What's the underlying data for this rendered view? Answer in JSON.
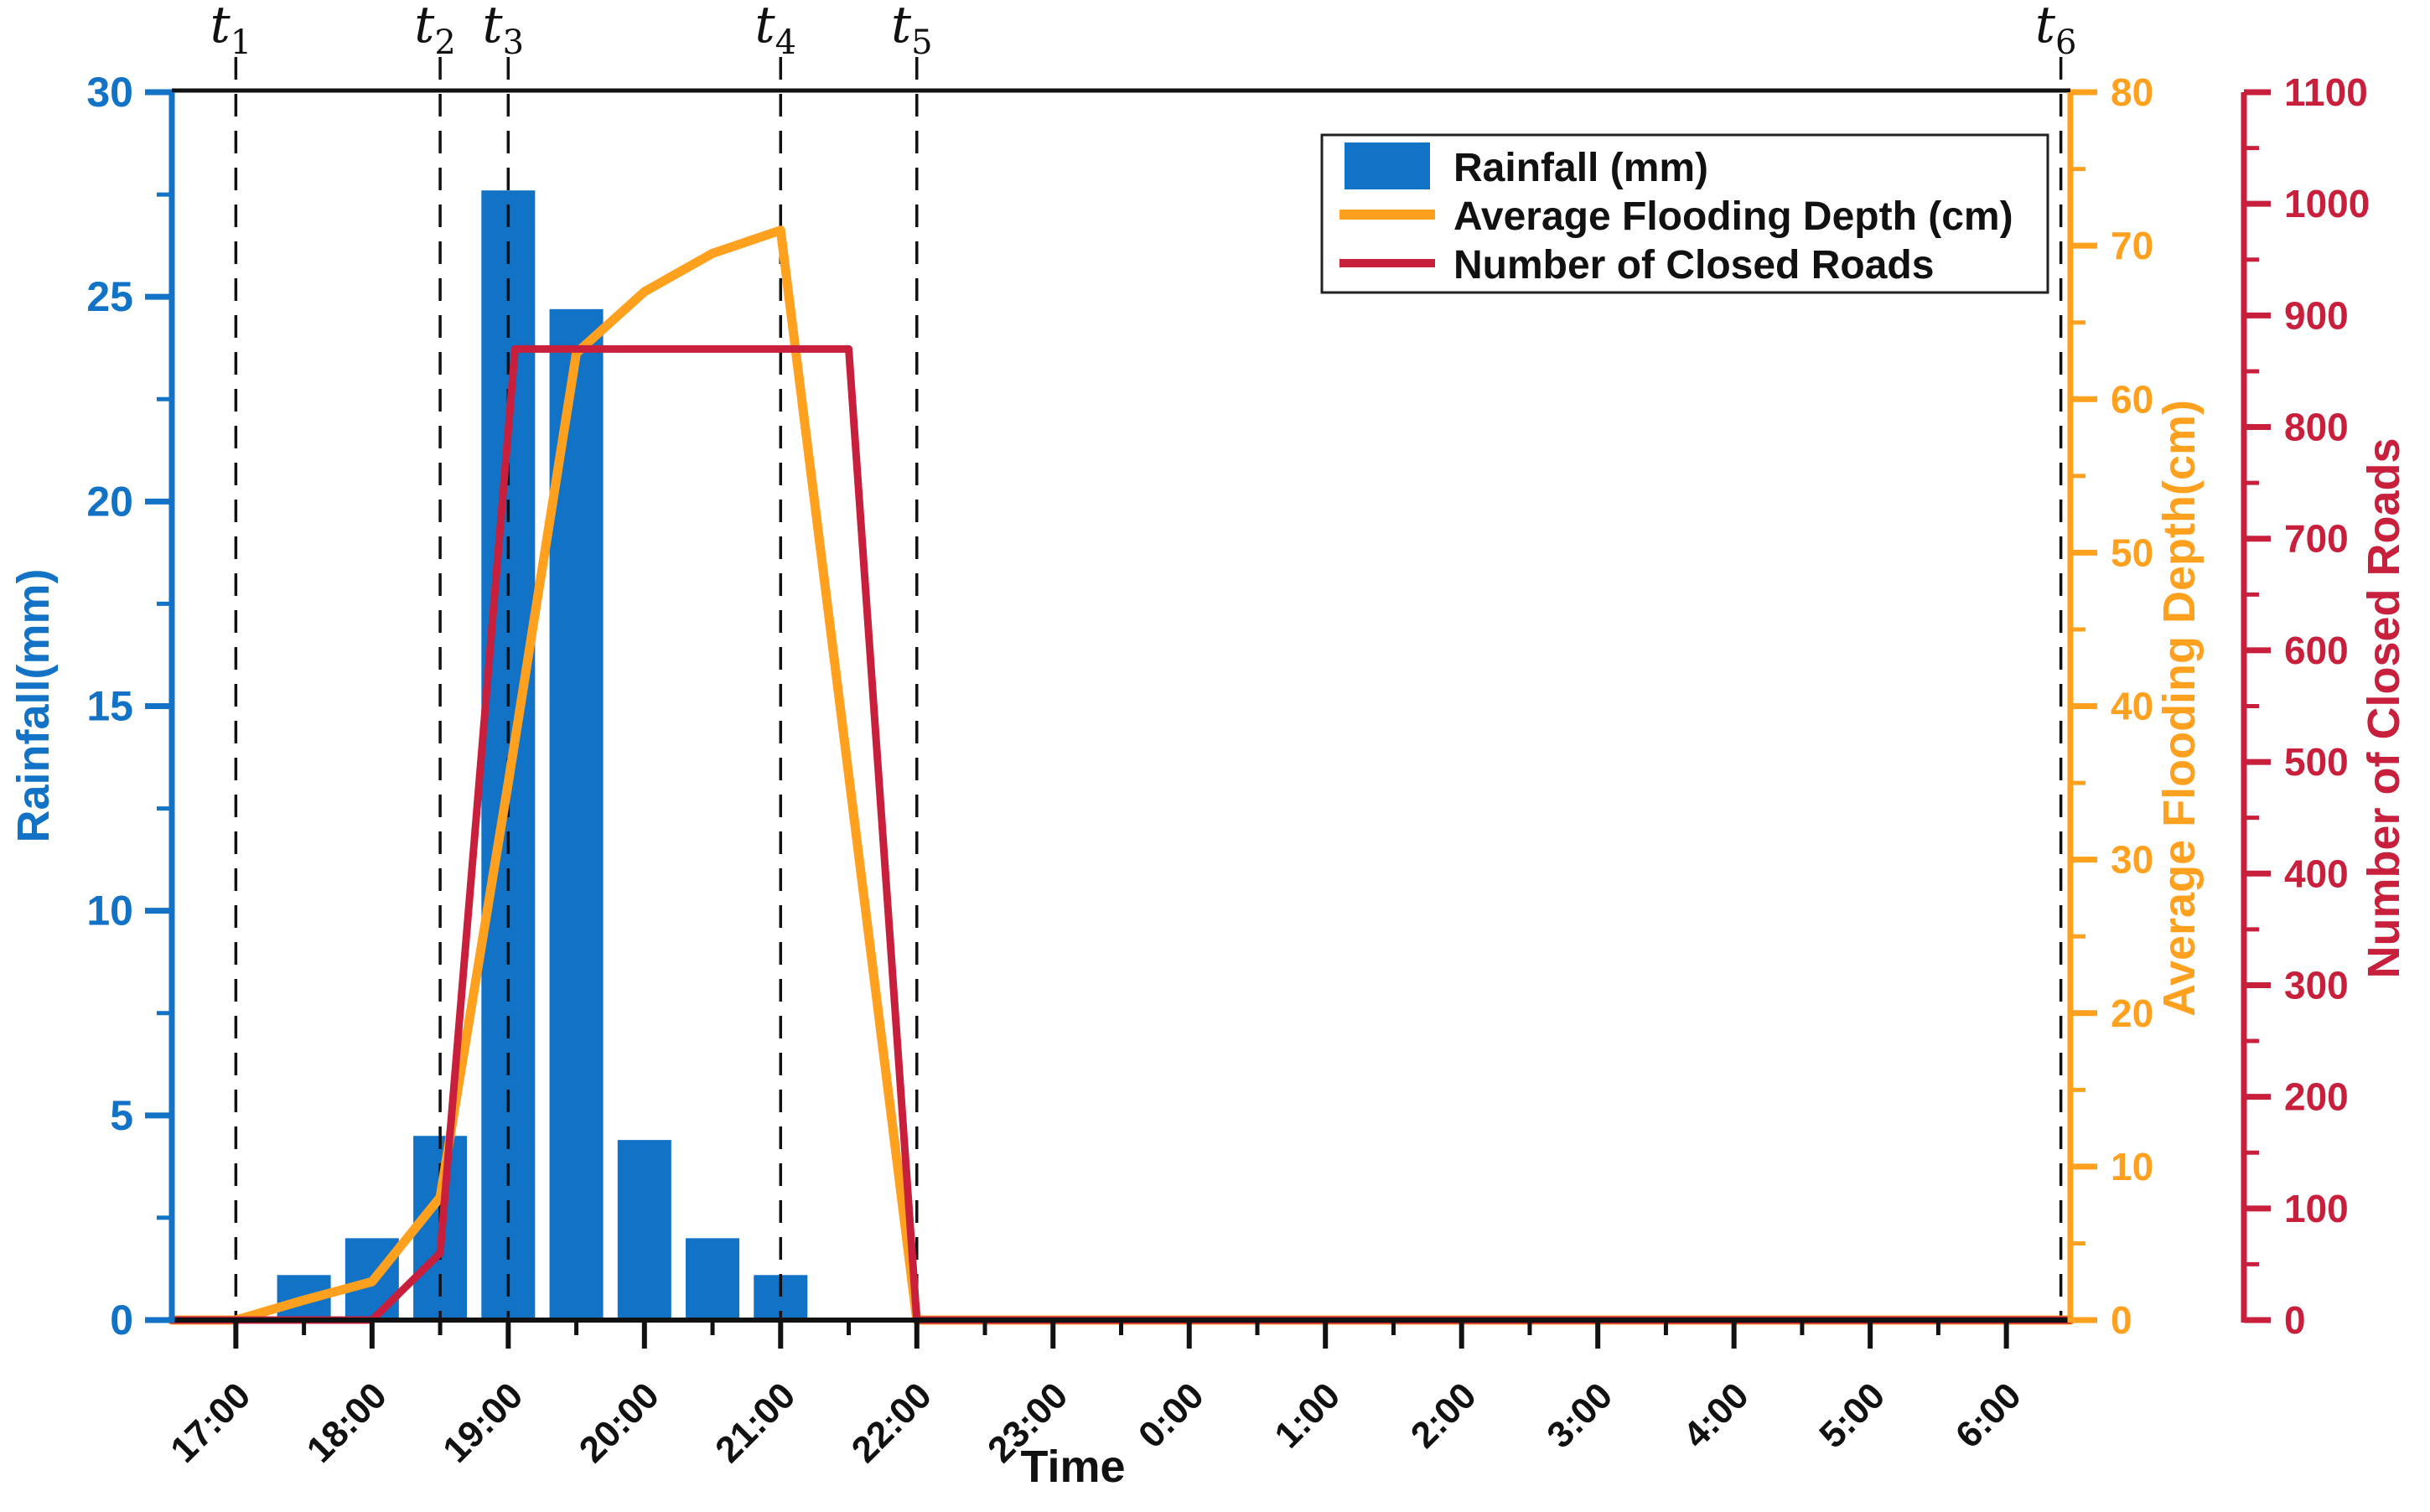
{
  "page": {
    "background": "#ffffff"
  },
  "colors": {
    "rainfall_blue": "#1272C6",
    "flooding_orange": "#FFA01E",
    "roads_red": "#C8203C",
    "axis_black": "#111111"
  },
  "legend": {
    "items": [
      {
        "label": "Rainfall (mm)",
        "swatch": "bar",
        "color": "#1272C6"
      },
      {
        "label": "Average Flooding Depth (cm)",
        "swatch": "line",
        "color": "#FFA01E"
      },
      {
        "label": "Number of Closed Roads",
        "swatch": "line",
        "color": "#C8203C"
      }
    ]
  },
  "chart_data": {
    "type": "combo-bar-line",
    "title": "",
    "xlabel": "Time",
    "x_domain_hours": [
      16.53,
      30.47
    ],
    "x_minor_step_hours": 0.5,
    "x_ticks": [
      {
        "h": 17,
        "label": "17:00"
      },
      {
        "h": 18,
        "label": "18:00"
      },
      {
        "h": 19,
        "label": "19:00"
      },
      {
        "h": 20,
        "label": "20:00"
      },
      {
        "h": 21,
        "label": "21:00"
      },
      {
        "h": 22,
        "label": "22:00"
      },
      {
        "h": 23,
        "label": "23:00"
      },
      {
        "h": 24,
        "label": "0:00"
      },
      {
        "h": 25,
        "label": "1:00"
      },
      {
        "h": 26,
        "label": "2:00"
      },
      {
        "h": 27,
        "label": "3:00"
      },
      {
        "h": 28,
        "label": "4:00"
      },
      {
        "h": 29,
        "label": "5:00"
      },
      {
        "h": 30,
        "label": "6:00"
      }
    ],
    "t_markers": [
      {
        "base": "t",
        "sub": "1",
        "h": 17.0
      },
      {
        "base": "t",
        "sub": "2",
        "h": 18.5
      },
      {
        "base": "t",
        "sub": "3",
        "h": 19.0
      },
      {
        "base": "t",
        "sub": "4",
        "h": 21.0
      },
      {
        "base": "t",
        "sub": "5",
        "h": 22.0
      },
      {
        "base": "t",
        "sub": "6",
        "h": 30.4
      }
    ],
    "axes": {
      "rainfall": {
        "label": "Rainfall(mm)",
        "color": "#1272C6",
        "min": 0,
        "max": 30,
        "major": 5,
        "minor": 2.5
      },
      "flooding": {
        "label": "Average Flooding Depth(cm)",
        "color": "#FFA01E",
        "min": 0,
        "max": 80,
        "major": 10,
        "minor": 5
      },
      "roads": {
        "label": "Number of Closed Roads",
        "color": "#C8203C",
        "min": 0,
        "max": 1100,
        "major": 100,
        "minor": 50
      }
    },
    "series": [
      {
        "name": "Rainfall (mm)",
        "type": "bar",
        "axis": "rainfall",
        "color": "#1272C6",
        "points": [
          [
            17.5,
            1.1
          ],
          [
            18.0,
            2.0
          ],
          [
            18.5,
            4.5
          ],
          [
            19.0,
            27.6
          ],
          [
            19.5,
            24.7
          ],
          [
            20.0,
            4.4
          ],
          [
            20.5,
            2.0
          ],
          [
            21.0,
            1.1
          ]
        ]
      },
      {
        "name": "Average Flooding Depth (cm)",
        "type": "line",
        "axis": "flooding",
        "color": "#FFA01E",
        "points": [
          [
            16.53,
            0
          ],
          [
            17.0,
            0
          ],
          [
            17.5,
            1.3
          ],
          [
            18.0,
            2.5
          ],
          [
            18.5,
            8
          ],
          [
            19.0,
            35
          ],
          [
            19.5,
            63
          ],
          [
            20.0,
            67
          ],
          [
            20.5,
            69.5
          ],
          [
            21.0,
            71
          ],
          [
            22.0,
            0
          ],
          [
            30.47,
            0
          ]
        ]
      },
      {
        "name": "Number of Closed Roads",
        "type": "line",
        "axis": "roads",
        "color": "#C8203C",
        "points": [
          [
            16.53,
            0
          ],
          [
            18.0,
            0
          ],
          [
            18.5,
            60
          ],
          [
            19.05,
            870
          ],
          [
            21.5,
            870
          ],
          [
            22.0,
            0
          ],
          [
            30.47,
            0
          ]
        ]
      }
    ]
  }
}
